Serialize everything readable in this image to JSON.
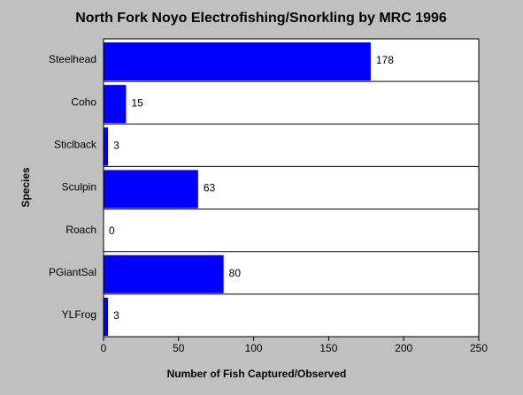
{
  "chart_data": {
    "type": "bar",
    "orientation": "horizontal",
    "title": "North Fork Noyo Electrofishing/Snorkling by MRC 1996",
    "xlabel": "Number of Fish Captured/Observed",
    "ylabel": "Species",
    "categories": [
      "Steelhead",
      "Coho",
      "Sticlback",
      "Sculpin",
      "Roach",
      "PGiantSal",
      "YLFrog"
    ],
    "values": [
      178,
      15,
      3,
      63,
      0,
      80,
      3
    ],
    "color": "#0000ff",
    "xlim": [
      0,
      250
    ],
    "xticks": [
      0,
      50,
      100,
      150,
      200,
      250
    ]
  }
}
